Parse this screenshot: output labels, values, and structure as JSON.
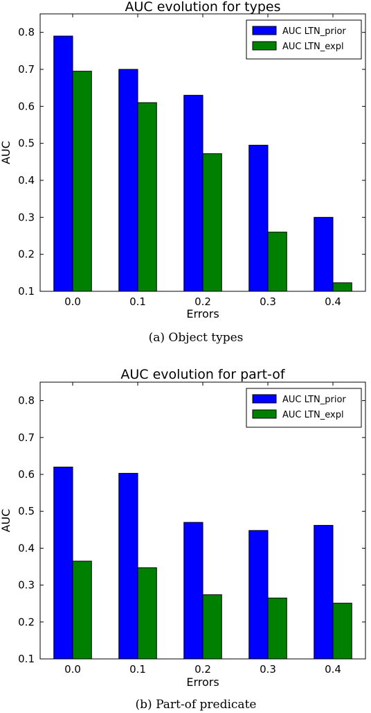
{
  "chart_data": [
    {
      "type": "bar",
      "title": "AUC evolution for types",
      "caption": "(a) Object types",
      "xlabel": "Errors",
      "ylabel": "AUC",
      "categories": [
        "0.0",
        "0.1",
        "0.2",
        "0.3",
        "0.4"
      ],
      "ylim": [
        0.1,
        0.85
      ],
      "yticks": [
        "0.1",
        "0.2",
        "0.3",
        "0.4",
        "0.5",
        "0.6",
        "0.7",
        "0.8"
      ],
      "legend_position": "top-right",
      "series": [
        {
          "name": "AUC LTN_prior",
          "color": "#0000ff",
          "values": [
            0.79,
            0.7,
            0.63,
            0.495,
            0.3
          ]
        },
        {
          "name": "AUC LTN_expl",
          "color": "#008000",
          "values": [
            0.695,
            0.61,
            0.472,
            0.26,
            0.123
          ]
        }
      ]
    },
    {
      "type": "bar",
      "title": "AUC evolution for part-of",
      "caption": "(b) Part-of predicate",
      "xlabel": "Errors",
      "ylabel": "AUC",
      "categories": [
        "0.0",
        "0.1",
        "0.2",
        "0.3",
        "0.4"
      ],
      "ylim": [
        0.1,
        0.85
      ],
      "yticks": [
        "0.1",
        "0.2",
        "0.3",
        "0.4",
        "0.5",
        "0.6",
        "0.7",
        "0.8"
      ],
      "legend_position": "top-right",
      "series": [
        {
          "name": "AUC LTN_prior",
          "color": "#0000ff",
          "values": [
            0.62,
            0.603,
            0.47,
            0.448,
            0.462
          ]
        },
        {
          "name": "AUC LTN_expl",
          "color": "#008000",
          "values": [
            0.365,
            0.347,
            0.274,
            0.265,
            0.251
          ]
        }
      ]
    }
  ]
}
